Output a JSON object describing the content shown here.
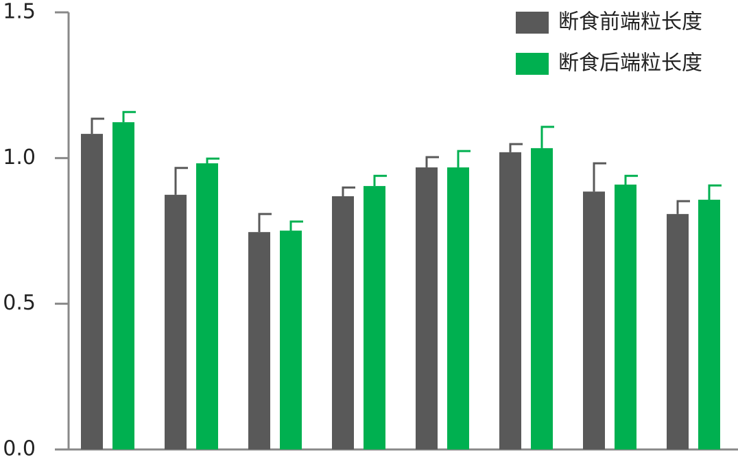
{
  "chart_data": {
    "type": "bar",
    "categories": [
      null,
      null,
      null,
      null,
      null,
      null,
      null,
      null
    ],
    "series": [
      {
        "name": "断食前端粒长度",
        "color": "#595959",
        "values": [
          1.083,
          0.874,
          0.746,
          0.869,
          0.968,
          1.02,
          0.885,
          0.808
        ],
        "errors": [
          0.052,
          0.092,
          0.062,
          0.03,
          0.035,
          0.028,
          0.097,
          0.044
        ]
      },
      {
        "name": "断食后端粒长度",
        "color": "#00b050",
        "values": [
          1.123,
          0.982,
          0.751,
          0.904,
          0.968,
          1.034,
          0.909,
          0.857
        ],
        "errors": [
          0.035,
          0.016,
          0.031,
          0.035,
          0.056,
          0.073,
          0.03,
          0.049
        ]
      }
    ],
    "ylim": [
      0,
      1.5
    ],
    "yticks": [
      {
        "value": 0,
        "label": "0.0"
      },
      {
        "value": 0.5,
        "label": "0.5"
      },
      {
        "value": 1,
        "label": "1.0"
      },
      {
        "value": 1.5,
        "label": "1.5"
      }
    ],
    "legend": "upper right"
  }
}
